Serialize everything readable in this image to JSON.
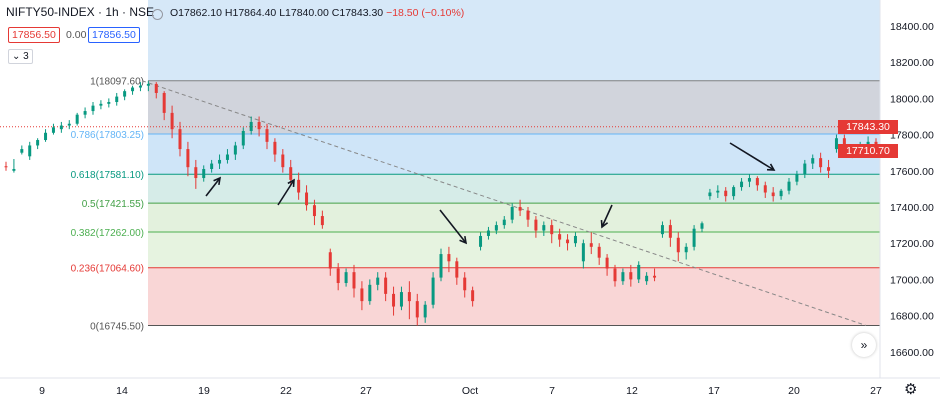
{
  "header": {
    "symbol": "NIFTY50-INDEX · 1h · NSE",
    "open": "O17862.10",
    "high": "H17864.40",
    "low": "L17840.00",
    "close": "C17843.30",
    "change": "−18.50 (−0.10%)",
    "bid": "17856.50",
    "spread": "0.00",
    "ask": "17856.50",
    "indicator_count": "3"
  },
  "price_labels": {
    "last": "17843.30",
    "second": "17710.70",
    "last_color": "#e53935",
    "second_color": "#e53935"
  },
  "controls": {
    "expand_icon": "chevrons-right-icon",
    "settings_icon": "gear-icon",
    "visibility_icon": "eye-icon"
  },
  "chart_data": {
    "type": "candlestick",
    "title": "NIFTY50-INDEX · 1h · NSE",
    "x_ticks": [
      "9",
      "14",
      "19",
      "22",
      "27",
      "Oct",
      "7",
      "12",
      "17",
      "20",
      "27"
    ],
    "y_ticks": [
      16600,
      16800,
      17000,
      17200,
      17400,
      17600,
      17800,
      18000,
      18200,
      18400
    ],
    "ylim": [
      16560,
      18500
    ],
    "fib_levels": [
      {
        "ratio_label": "1",
        "value": 18097.6,
        "label": "1(18097.60)"
      },
      {
        "ratio_label": "0.786",
        "value": 17803.25,
        "label": "0.786(17803.25)"
      },
      {
        "ratio_label": "0.618",
        "value": 17581.1,
        "label": "0.618(17581.10)"
      },
      {
        "ratio_label": "0.5",
        "value": 17421.55,
        "label": "0.5(17421.55)"
      },
      {
        "ratio_label": "0.382",
        "value": 17262.0,
        "label": "0.382(17262.00)"
      },
      {
        "ratio_label": "0.236",
        "value": 17064.6,
        "label": "0.236(17064.60)"
      },
      {
        "ratio_label": "0",
        "value": 16745.5,
        "label": "0(16745.50)"
      }
    ],
    "fib_zone_colors": [
      "#d1d4dc",
      "#cfe5f8",
      "#d6ece8",
      "#e3f1dd",
      "#e6f3e0",
      "#f9d6d6"
    ],
    "fib_line_colors": [
      "#808080",
      "#64b5f6",
      "#089981",
      "#43a047",
      "#4caf50",
      "#e53935",
      "#555555"
    ],
    "fib_label_colors": [
      "#555555",
      "#64b5f6",
      "#089981",
      "#43a047",
      "#4caf50",
      "#e53935",
      "#555555"
    ],
    "trendline": {
      "from": {
        "x_tick": "14",
        "y": 18097.6
      },
      "to": {
        "x_tick": "27",
        "y": 16745.5
      },
      "style": "dashed"
    },
    "candles": [
      [
        17625,
        17650,
        17620,
        17600
      ],
      [
        17600,
        17665,
        17610,
        17590
      ],
      [
        17700,
        17740,
        17720,
        17690
      ],
      [
        17680,
        17760,
        17740,
        17660
      ],
      [
        17740,
        17780,
        17770,
        17720
      ],
      [
        17770,
        17830,
        17810,
        17760
      ],
      [
        17810,
        17860,
        17840,
        17800
      ],
      [
        17830,
        17870,
        17850,
        17810
      ],
      [
        17850,
        17880,
        17860,
        17830
      ],
      [
        17860,
        17920,
        17910,
        17850
      ],
      [
        17910,
        17950,
        17930,
        17890
      ],
      [
        17930,
        17980,
        17960,
        17910
      ],
      [
        17960,
        17990,
        17970,
        17940
      ],
      [
        17970,
        18000,
        17980,
        17950
      ],
      [
        17980,
        18030,
        18010,
        17960
      ],
      [
        18010,
        18050,
        18040,
        17990
      ],
      [
        18040,
        18070,
        18060,
        18020
      ],
      [
        18060,
        18090,
        18070,
        18040
      ],
      [
        18070,
        18097,
        18080,
        18040
      ],
      [
        18080,
        18090,
        18030,
        18000
      ],
      [
        18030,
        18040,
        17920,
        17880
      ],
      [
        17920,
        17960,
        17830,
        17780
      ],
      [
        17830,
        17870,
        17720,
        17680
      ],
      [
        17720,
        17760,
        17620,
        17570
      ],
      [
        17620,
        17660,
        17560,
        17500
      ],
      [
        17560,
        17630,
        17610,
        17540
      ],
      [
        17610,
        17660,
        17640,
        17590
      ],
      [
        17640,
        17690,
        17660,
        17610
      ],
      [
        17660,
        17720,
        17690,
        17640
      ],
      [
        17690,
        17760,
        17740,
        17660
      ],
      [
        17740,
        17840,
        17820,
        17720
      ],
      [
        17820,
        17900,
        17870,
        17800
      ],
      [
        17870,
        17900,
        17830,
        17790
      ],
      [
        17830,
        17860,
        17760,
        17720
      ],
      [
        17760,
        17780,
        17690,
        17650
      ],
      [
        17690,
        17720,
        17620,
        17590
      ],
      [
        17620,
        17660,
        17550,
        17520
      ],
      [
        17550,
        17590,
        17480,
        17440
      ],
      [
        17480,
        17520,
        17410,
        17380
      ],
      [
        17410,
        17440,
        17350,
        17300
      ],
      [
        17350,
        17380,
        17300,
        17280
      ],
      [
        17150,
        17170,
        17060,
        17020
      ],
      [
        17060,
        17090,
        16980,
        16940
      ],
      [
        16980,
        17060,
        17040,
        16960
      ],
      [
        17040,
        17080,
        16950,
        16900
      ],
      [
        16950,
        16990,
        16880,
        16830
      ],
      [
        16880,
        17000,
        16970,
        16860
      ],
      [
        16970,
        17040,
        17010,
        16940
      ],
      [
        17010,
        17040,
        16920,
        16880
      ],
      [
        16920,
        16960,
        16850,
        16800
      ],
      [
        16850,
        16960,
        16930,
        16830
      ],
      [
        16930,
        16990,
        16880,
        16780
      ],
      [
        16880,
        16920,
        16790,
        16745
      ],
      [
        16790,
        16880,
        16860,
        16760
      ],
      [
        16860,
        17040,
        17010,
        16840
      ],
      [
        17010,
        17170,
        17140,
        16990
      ],
      [
        17140,
        17180,
        17100,
        17040
      ],
      [
        17100,
        17120,
        17010,
        16970
      ],
      [
        17010,
        17040,
        16940,
        16900
      ],
      [
        16940,
        16960,
        16880,
        16850
      ],
      [
        17180,
        17260,
        17240,
        17160
      ],
      [
        17240,
        17290,
        17270,
        17220
      ],
      [
        17270,
        17320,
        17300,
        17250
      ],
      [
        17300,
        17350,
        17330,
        17280
      ],
      [
        17330,
        17420,
        17400,
        17310
      ],
      [
        17400,
        17440,
        17380,
        17350
      ],
      [
        17380,
        17400,
        17330,
        17290
      ],
      [
        17330,
        17350,
        17270,
        17230
      ],
      [
        17270,
        17320,
        17300,
        17240
      ],
      [
        17300,
        17330,
        17250,
        17200
      ],
      [
        17250,
        17280,
        17220,
        17180
      ],
      [
        17220,
        17250,
        17200,
        17160
      ],
      [
        17200,
        17260,
        17240,
        17180
      ],
      [
        17100,
        17220,
        17200,
        17060
      ],
      [
        17200,
        17260,
        17180,
        17140
      ],
      [
        17180,
        17200,
        17120,
        17080
      ],
      [
        17120,
        17140,
        17060,
        17020
      ],
      [
        17060,
        17080,
        16990,
        16960
      ],
      [
        16990,
        17060,
        17040,
        16970
      ],
      [
        17040,
        17080,
        17000,
        16960
      ],
      [
        17000,
        17100,
        17080,
        16980
      ],
      [
        16990,
        17040,
        17020,
        16970
      ],
      [
        17020,
        17060,
        17010,
        16990
      ],
      [
        17250,
        17320,
        17300,
        17230
      ],
      [
        17300,
        17330,
        17230,
        17180
      ],
      [
        17230,
        17260,
        17150,
        17100
      ],
      [
        17150,
        17200,
        17180,
        17110
      ],
      [
        17180,
        17300,
        17280,
        17160
      ],
      [
        17280,
        17320,
        17310,
        17260
      ],
      [
        17460,
        17500,
        17480,
        17440
      ],
      [
        17480,
        17520,
        17490,
        17450
      ],
      [
        17490,
        17510,
        17460,
        17430
      ],
      [
        17460,
        17520,
        17510,
        17440
      ],
      [
        17510,
        17560,
        17540,
        17490
      ],
      [
        17540,
        17580,
        17560,
        17510
      ],
      [
        17560,
        17570,
        17520,
        17490
      ],
      [
        17520,
        17540,
        17480,
        17450
      ],
      [
        17480,
        17510,
        17460,
        17430
      ],
      [
        17460,
        17500,
        17490,
        17440
      ],
      [
        17490,
        17560,
        17540,
        17470
      ],
      [
        17540,
        17600,
        17580,
        17520
      ],
      [
        17580,
        17660,
        17640,
        17560
      ],
      [
        17640,
        17690,
        17670,
        17610
      ],
      [
        17670,
        17700,
        17620,
        17590
      ],
      [
        17620,
        17660,
        17600,
        17560
      ],
      [
        17720,
        17800,
        17780,
        17700
      ],
      [
        17780,
        17800,
        17720,
        17690
      ],
      [
        17720,
        17740,
        17700,
        17670
      ],
      [
        17700,
        17760,
        17740,
        17690
      ],
      [
        17740,
        17790,
        17760,
        17720
      ],
      [
        17760,
        17780,
        17710,
        17690
      ]
    ]
  }
}
